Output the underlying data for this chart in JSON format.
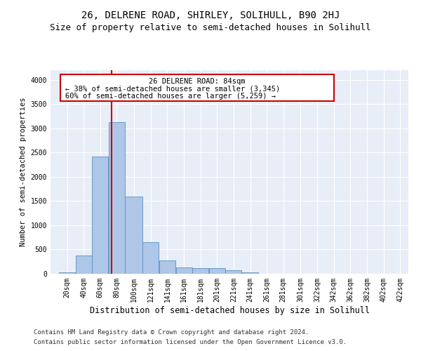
{
  "title": "26, DELRENE ROAD, SHIRLEY, SOLIHULL, B90 2HJ",
  "subtitle": "Size of property relative to semi-detached houses in Solihull",
  "xlabel": "Distribution of semi-detached houses by size in Solihull",
  "ylabel": "Number of semi-detached properties",
  "footer1": "Contains HM Land Registry data © Crown copyright and database right 2024.",
  "footer2": "Contains public sector information licensed under the Open Government Licence v3.0.",
  "annotation_title": "26 DELRENE ROAD: 84sqm",
  "annotation_line1": "← 38% of semi-detached houses are smaller (3,345)",
  "annotation_line2": "60% of semi-detached houses are larger (5,259) →",
  "property_size": 84,
  "bar_categories": [
    "20sqm",
    "40sqm",
    "60sqm",
    "80sqm",
    "100sqm",
    "121sqm",
    "141sqm",
    "161sqm",
    "181sqm",
    "201sqm",
    "221sqm",
    "241sqm",
    "261sqm",
    "281sqm",
    "301sqm",
    "322sqm",
    "342sqm",
    "362sqm",
    "382sqm",
    "402sqm",
    "422sqm"
  ],
  "bar_left_edges": [
    20,
    40,
    60,
    80,
    100,
    121,
    141,
    161,
    181,
    201,
    221,
    241,
    261,
    281,
    301,
    322,
    342,
    362,
    382,
    402,
    422
  ],
  "bar_widths": [
    20,
    20,
    20,
    20,
    21,
    20,
    20,
    20,
    20,
    20,
    20,
    20,
    20,
    20,
    21,
    20,
    20,
    20,
    20,
    20,
    20
  ],
  "bar_heights": [
    30,
    370,
    2420,
    3130,
    1600,
    650,
    270,
    130,
    110,
    110,
    70,
    30,
    0,
    0,
    0,
    0,
    0,
    0,
    0,
    0,
    0
  ],
  "bar_color": "#aec6e8",
  "bar_edge_color": "#5a8fc0",
  "bg_color": "#e8eef7",
  "grid_color": "#ffffff",
  "red_line_color": "#cc0000",
  "ylim": [
    0,
    4200
  ],
  "yticks": [
    0,
    500,
    1000,
    1500,
    2000,
    2500,
    3000,
    3500,
    4000
  ],
  "title_fontsize": 10,
  "subtitle_fontsize": 9,
  "xlabel_fontsize": 8.5,
  "ylabel_fontsize": 7.5,
  "tick_fontsize": 7,
  "annotation_fontsize": 7.5,
  "footer_fontsize": 6.5
}
